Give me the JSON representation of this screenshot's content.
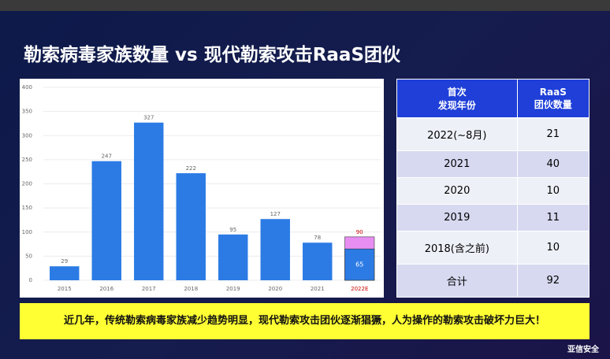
{
  "title": "勒索病毒家族数量 vs 现代勒索攻击RaaS团伙",
  "chart_data": {
    "type": "bar",
    "mode": "overlay",
    "categories": [
      "2015",
      "2016",
      "2017",
      "2018",
      "2019",
      "2020",
      "2021",
      "2022E"
    ],
    "series": [
      {
        "color": "#e88ef2",
        "values": [
          null,
          null,
          null,
          null,
          null,
          null,
          null,
          90
        ]
      },
      {
        "color": "#2c7be5",
        "values": [
          29,
          247,
          327,
          222,
          95,
          127,
          78,
          65
        ]
      }
    ],
    "highlight_category_color": "#cc0000",
    "ylim": [
      0,
      400
    ],
    "yticks": [
      0,
      50,
      100,
      150,
      200,
      250,
      300,
      350,
      400
    ],
    "grid": true
  },
  "table": {
    "header": [
      [
        "首次",
        "发现年份"
      ],
      [
        "RaaS",
        "团伙数量"
      ]
    ],
    "rows": [
      [
        "2022(~8月)",
        "21"
      ],
      [
        "2021",
        "40"
      ],
      [
        "2020",
        "10"
      ],
      [
        "2019",
        "11"
      ],
      [
        "2018(含之前)",
        "10"
      ],
      [
        "合计",
        "92"
      ]
    ]
  },
  "banner": "近几年，传统勒索病毒家族减少趋势明显，现代勒索攻击团伙逐渐猖獗，人为操作的勒索攻击破坏力巨大！",
  "logo": "亚信安全"
}
